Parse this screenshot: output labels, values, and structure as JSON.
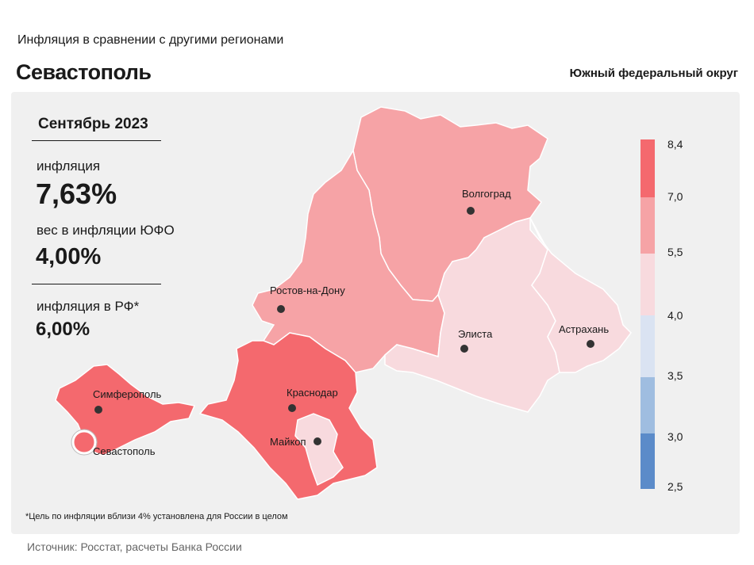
{
  "header": {
    "subtitle": "Инфляция в сравнении с другими регионами",
    "title": "Севастополь",
    "district": "Южный федеральный округ"
  },
  "stats": {
    "period": "Сентябрь 2023",
    "inflation_label": "инфляция",
    "inflation_value": "7,63%",
    "weight_label": "вес в инфляции ЮФО",
    "weight_value": "4,00%",
    "rf_label": "инфляция в РФ*",
    "rf_value": "6,00%"
  },
  "map": {
    "highlighted_region": "Севастополь",
    "cities": [
      {
        "name": "Волгоград"
      },
      {
        "name": "Ростов-на-Дону"
      },
      {
        "name": "Элиста"
      },
      {
        "name": "Астрахань"
      },
      {
        "name": "Краснодар"
      },
      {
        "name": "Майкоп"
      },
      {
        "name": "Симферополь"
      },
      {
        "name": "Севастополь"
      }
    ],
    "colors": {
      "over_7": "#f4696e",
      "5_5_to_7": "#f6a3a6",
      "4_to_5_5": "#f8dade",
      "3_5_to_4": "#dae3f2",
      "3_to_3_5": "#9fbde0",
      "2_5_to_3": "#5b8bc9"
    }
  },
  "legend": {
    "ticks": [
      "8,4",
      "7,0",
      "5,5",
      "4,0",
      "3,5",
      "3,0",
      "2,5"
    ],
    "colors": [
      "#f4696e",
      "#f6a3a6",
      "#f8dade",
      "#dae3f2",
      "#9fbde0",
      "#5b8bc9"
    ]
  },
  "footnote": "*Цель по инфляции вблизи 4% установлена для России в целом",
  "source": "Источник: Росстат, расчеты Банка России"
}
